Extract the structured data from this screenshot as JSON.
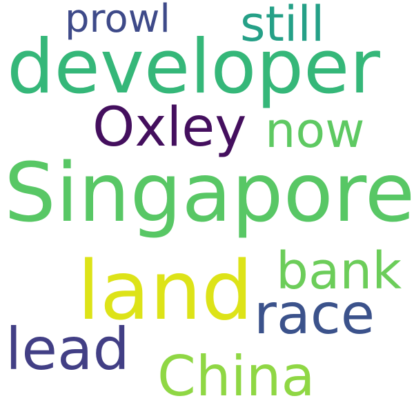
{
  "words": {
    "developer": {
      "text": "developer",
      "color": "#35b779"
    },
    "singapore": {
      "text": "Singapore",
      "color": "#58c765"
    },
    "land": {
      "text": "land",
      "color": "#dde318"
    },
    "china": {
      "text": "China",
      "color": "#8fd744"
    },
    "lead": {
      "text": "lead",
      "color": "#423f85"
    },
    "race": {
      "text": "race",
      "color": "#3b528b"
    },
    "bank": {
      "text": "bank",
      "color": "#6ccd5a"
    },
    "now": {
      "text": "now",
      "color": "#5ec962"
    },
    "oxley": {
      "text": "Oxley",
      "color": "#440f5e"
    },
    "still": {
      "text": "still",
      "color": "#25a087"
    },
    "prowl": {
      "text": "prowl",
      "color": "#3e4a89"
    }
  }
}
